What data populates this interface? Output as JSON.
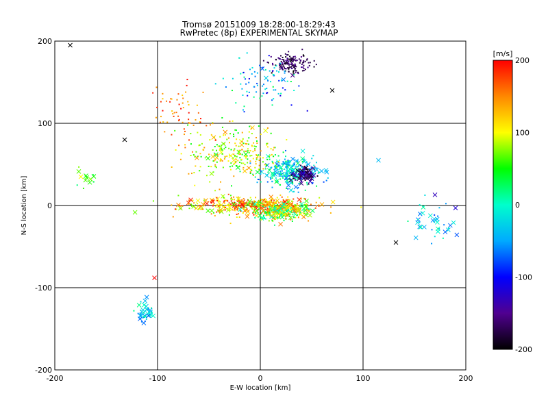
{
  "chart_data": {
    "type": "scatter",
    "title": "Tromsø 20151009 18:28:00-18:29:43",
    "subtitle": "RwPretec (8p) EXPERIMENTAL SKYMAP",
    "xlabel": "E-W location [km]",
    "ylabel": "N-S location [km]",
    "xlim": [
      -200,
      200
    ],
    "ylim": [
      -200,
      200
    ],
    "xticks": [
      "-200",
      "-100",
      "0",
      "100",
      "200"
    ],
    "yticks": [
      "-200",
      "-100",
      "0",
      "100",
      "200"
    ],
    "grid": true,
    "colorbar": {
      "label": "[m/s]",
      "range": [
        -200,
        200
      ],
      "ticks": [
        "200",
        "100",
        "0",
        "-100",
        "-200"
      ],
      "colors": [
        "#000000",
        "#500090",
        "#0000ff",
        "#00aaff",
        "#00ffcc",
        "#00ff00",
        "#ffff00",
        "#ff8800",
        "#ff0000"
      ]
    },
    "marker_types": [
      "dot",
      "x"
    ],
    "clusters": [
      {
        "cx": -10,
        "cy": 0,
        "sx": 55,
        "sy": 9,
        "n": 420,
        "vmin": 60,
        "vmax": 200,
        "xfrac": 0.25
      },
      {
        "cx": 20,
        "cy": -7,
        "sx": 22,
        "sy": 9,
        "n": 260,
        "vmin": -10,
        "vmax": 160,
        "xfrac": 0.2
      },
      {
        "cx": 30,
        "cy": 40,
        "sx": 22,
        "sy": 15,
        "n": 300,
        "vmin": -80,
        "vmax": 40,
        "xfrac": 0.2
      },
      {
        "cx": 42,
        "cy": 37,
        "sx": 8,
        "sy": 7,
        "n": 90,
        "vmin": -200,
        "vmax": -110,
        "xfrac": 0.3
      },
      {
        "cx": -25,
        "cy": 65,
        "sx": 40,
        "sy": 28,
        "n": 260,
        "vmin": 40,
        "vmax": 150,
        "xfrac": 0.07
      },
      {
        "cx": 30,
        "cy": 172,
        "sx": 15,
        "sy": 9,
        "n": 140,
        "vmin": -200,
        "vmax": -140,
        "xfrac": 0.1
      },
      {
        "cx": 0,
        "cy": 150,
        "sx": 32,
        "sy": 28,
        "n": 90,
        "vmin": -120,
        "vmax": 40,
        "xfrac": 0.05
      },
      {
        "cx": -75,
        "cy": 110,
        "sx": 22,
        "sy": 30,
        "n": 60,
        "vmin": 120,
        "vmax": 200,
        "xfrac": 0
      },
      {
        "cx": -112,
        "cy": -130,
        "sx": 6,
        "sy": 12,
        "n": 45,
        "vmin": -80,
        "vmax": 20,
        "xfrac": 0.45
      },
      {
        "cx": 165,
        "cy": -20,
        "sx": 18,
        "sy": 22,
        "n": 40,
        "vmin": -80,
        "vmax": 30,
        "xfrac": 0.5
      },
      {
        "cx": -170,
        "cy": 35,
        "sx": 10,
        "sy": 8,
        "n": 14,
        "vmin": 20,
        "vmax": 120,
        "xfrac": 0.6
      }
    ],
    "points": [
      {
        "x": -185,
        "y": 195,
        "v": -200,
        "m": "x"
      },
      {
        "x": -132,
        "y": 80,
        "v": -200,
        "m": "x"
      },
      {
        "x": 70,
        "y": 140,
        "v": -200,
        "m": "x"
      },
      {
        "x": 132,
        "y": -45,
        "v": -200,
        "m": "x"
      },
      {
        "x": -103,
        "y": -88,
        "v": 200,
        "m": "x"
      },
      {
        "x": 115,
        "y": 55,
        "v": -40,
        "m": "x"
      },
      {
        "x": 170,
        "y": 13,
        "v": -130,
        "m": "x"
      },
      {
        "x": 190,
        "y": -3,
        "v": -120,
        "m": "x"
      }
    ]
  }
}
